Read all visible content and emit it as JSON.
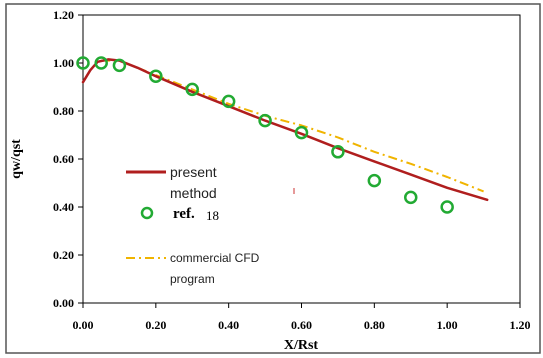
{
  "chart_data": {
    "type": "line",
    "xlabel": "X/Rst",
    "ylabel": "qw/qst",
    "xlim": [
      0,
      1.2
    ],
    "ylim": [
      0,
      1.2
    ],
    "x_ticks": [
      "0.00",
      "0.20",
      "0.40",
      "0.60",
      "0.80",
      "1.00",
      "1.20"
    ],
    "y_ticks": [
      "0.00",
      "0.20",
      "0.40",
      "0.60",
      "0.80",
      "1.00",
      "1.20"
    ],
    "grid": false,
    "legend_position": "left-center",
    "legend": {
      "present": [
        "present",
        "method"
      ],
      "ref": "ref.",
      "ref_num": "18",
      "cfd": [
        "commercial CFD",
        "program"
      ]
    },
    "series": [
      {
        "name": "present method",
        "style": "solid-line",
        "color": "#b01e1e",
        "points": [
          [
            0.0,
            0.92
          ],
          [
            0.02,
            0.97
          ],
          [
            0.04,
            1.005
          ],
          [
            0.07,
            1.015
          ],
          [
            0.1,
            1.01
          ],
          [
            0.15,
            0.98
          ],
          [
            0.2,
            0.945
          ],
          [
            0.3,
            0.88
          ],
          [
            0.4,
            0.82
          ],
          [
            0.5,
            0.76
          ],
          [
            0.6,
            0.705
          ],
          [
            0.7,
            0.645
          ],
          [
            0.8,
            0.59
          ],
          [
            0.9,
            0.535
          ],
          [
            1.0,
            0.48
          ],
          [
            1.11,
            0.43
          ]
        ]
      },
      {
        "name": "commercial CFD program",
        "style": "dash-dot-line",
        "color": "#f0b400",
        "points": [
          [
            0.05,
            1.01
          ],
          [
            0.1,
            1.01
          ],
          [
            0.2,
            0.95
          ],
          [
            0.3,
            0.89
          ],
          [
            0.4,
            0.83
          ],
          [
            0.5,
            0.78
          ],
          [
            0.6,
            0.74
          ],
          [
            0.7,
            0.69
          ],
          [
            0.8,
            0.63
          ],
          [
            0.9,
            0.58
          ],
          [
            1.0,
            0.525
          ],
          [
            1.1,
            0.465
          ]
        ]
      },
      {
        "name": "ref. 18",
        "style": "open-circle",
        "color": "#22aa33",
        "points": [
          [
            0.0,
            1.0
          ],
          [
            0.05,
            1.0
          ],
          [
            0.1,
            0.99
          ],
          [
            0.2,
            0.945
          ],
          [
            0.3,
            0.89
          ],
          [
            0.4,
            0.84
          ],
          [
            0.5,
            0.76
          ],
          [
            0.6,
            0.71
          ],
          [
            0.7,
            0.63
          ],
          [
            0.8,
            0.51
          ],
          [
            0.9,
            0.44
          ],
          [
            1.0,
            0.4
          ]
        ]
      }
    ]
  }
}
